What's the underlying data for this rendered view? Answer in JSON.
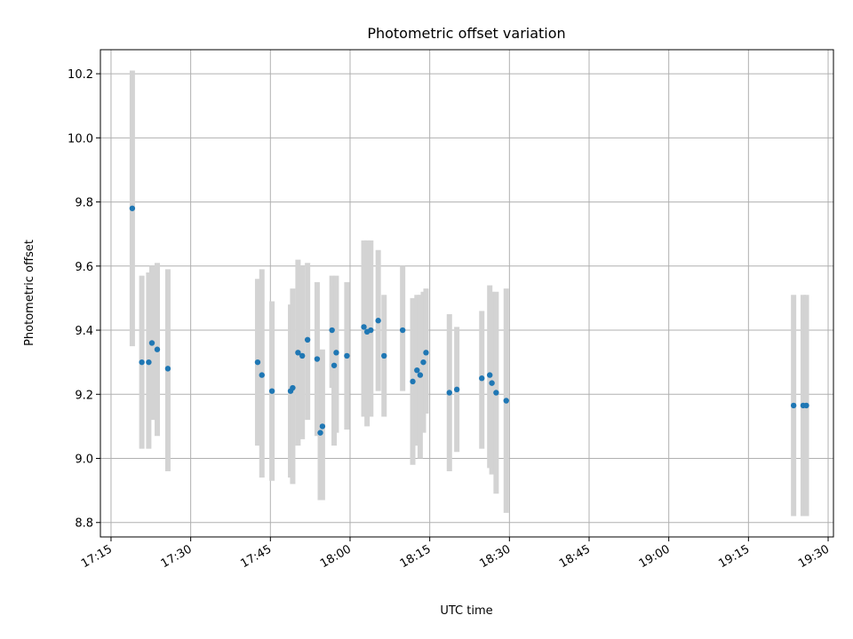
{
  "chart_data": {
    "type": "scatter",
    "title": "Photometric offset variation",
    "xlabel": "UTC time",
    "ylabel": "Photometric offset",
    "x_unit": "UTC time of day (HH:MM)",
    "xlim": [
      "17:13",
      "19:31"
    ],
    "ylim": [
      8.755,
      10.275
    ],
    "grid": true,
    "x_ticks": [
      "17:15",
      "17:30",
      "17:45",
      "18:00",
      "18:15",
      "18:30",
      "18:45",
      "19:00",
      "19:15",
      "19:30"
    ],
    "y_ticks": [
      "8.8",
      "9.0",
      "9.2",
      "9.4",
      "9.6",
      "9.8",
      "10.0",
      "10.2"
    ],
    "colors": {
      "points": "#1f77b4",
      "errorbars": "#d3d3d3",
      "grid": "#b0b0b0"
    },
    "points": [
      {
        "x": "17:19:00",
        "y": 9.78,
        "lo": 9.35,
        "hi": 10.21
      },
      {
        "x": "17:20:48",
        "y": 9.3,
        "lo": 9.03,
        "hi": 9.57
      },
      {
        "x": "17:22:06",
        "y": 9.3,
        "lo": 9.03,
        "hi": 9.58
      },
      {
        "x": "17:22:42",
        "y": 9.36,
        "lo": 9.12,
        "hi": 9.6
      },
      {
        "x": "17:23:42",
        "y": 9.34,
        "lo": 9.07,
        "hi": 9.61
      },
      {
        "x": "17:25:42",
        "y": 9.28,
        "lo": 8.96,
        "hi": 9.59
      },
      {
        "x": "17:42:36",
        "y": 9.3,
        "lo": 9.04,
        "hi": 9.56
      },
      {
        "x": "17:43:24",
        "y": 9.26,
        "lo": 8.94,
        "hi": 9.59
      },
      {
        "x": "17:45:18",
        "y": 9.21,
        "lo": 8.93,
        "hi": 9.49
      },
      {
        "x": "17:48:48",
        "y": 9.21,
        "lo": 8.94,
        "hi": 9.48
      },
      {
        "x": "17:49:12",
        "y": 9.22,
        "lo": 8.92,
        "hi": 9.53
      },
      {
        "x": "17:50:12",
        "y": 9.33,
        "lo": 9.04,
        "hi": 9.62
      },
      {
        "x": "17:51:00",
        "y": 9.32,
        "lo": 9.06,
        "hi": 9.6
      },
      {
        "x": "17:52:00",
        "y": 9.37,
        "lo": 9.12,
        "hi": 9.61
      },
      {
        "x": "17:53:48",
        "y": 9.31,
        "lo": 9.07,
        "hi": 9.55
      },
      {
        "x": "17:54:24",
        "y": 9.08,
        "lo": 8.87,
        "hi": 9.29
      },
      {
        "x": "17:54:48",
        "y": 9.1,
        "lo": 8.87,
        "hi": 9.34
      },
      {
        "x": "17:56:36",
        "y": 9.4,
        "lo": 9.22,
        "hi": 9.57
      },
      {
        "x": "17:57:00",
        "y": 9.29,
        "lo": 9.04,
        "hi": 9.54
      },
      {
        "x": "17:57:24",
        "y": 9.33,
        "lo": 9.08,
        "hi": 9.57
      },
      {
        "x": "17:59:24",
        "y": 9.32,
        "lo": 9.09,
        "hi": 9.55
      },
      {
        "x": "18:02:36",
        "y": 9.41,
        "lo": 9.13,
        "hi": 9.68
      },
      {
        "x": "18:03:12",
        "y": 9.395,
        "lo": 9.1,
        "hi": 9.68
      },
      {
        "x": "18:03:54",
        "y": 9.4,
        "lo": 9.13,
        "hi": 9.68
      },
      {
        "x": "18:05:18",
        "y": 9.43,
        "lo": 9.21,
        "hi": 9.65
      },
      {
        "x": "18:06:24",
        "y": 9.32,
        "lo": 9.13,
        "hi": 9.51
      },
      {
        "x": "18:09:54",
        "y": 9.4,
        "lo": 9.21,
        "hi": 9.6
      },
      {
        "x": "18:11:48",
        "y": 9.24,
        "lo": 8.98,
        "hi": 9.5
      },
      {
        "x": "18:12:36",
        "y": 9.275,
        "lo": 9.04,
        "hi": 9.51
      },
      {
        "x": "18:13:12",
        "y": 9.26,
        "lo": 9.0,
        "hi": 9.51
      },
      {
        "x": "18:13:48",
        "y": 9.3,
        "lo": 9.08,
        "hi": 9.52
      },
      {
        "x": "18:14:18",
        "y": 9.33,
        "lo": 9.14,
        "hi": 9.53
      },
      {
        "x": "18:18:42",
        "y": 9.205,
        "lo": 8.96,
        "hi": 9.45
      },
      {
        "x": "18:20:06",
        "y": 9.215,
        "lo": 9.02,
        "hi": 9.41
      },
      {
        "x": "18:24:48",
        "y": 9.25,
        "lo": 9.03,
        "hi": 9.46
      },
      {
        "x": "18:26:18",
        "y": 9.26,
        "lo": 8.97,
        "hi": 9.54
      },
      {
        "x": "18:26:42",
        "y": 9.235,
        "lo": 8.95,
        "hi": 9.52
      },
      {
        "x": "18:27:30",
        "y": 9.205,
        "lo": 8.89,
        "hi": 9.52
      },
      {
        "x": "18:29:24",
        "y": 9.18,
        "lo": 8.83,
        "hi": 9.53
      },
      {
        "x": "19:23:30",
        "y": 9.165,
        "lo": 8.82,
        "hi": 9.51
      },
      {
        "x": "19:25:18",
        "y": 9.165,
        "lo": 8.82,
        "hi": 9.51
      },
      {
        "x": "19:25:54",
        "y": 9.165,
        "lo": 8.82,
        "hi": 9.51
      }
    ]
  }
}
